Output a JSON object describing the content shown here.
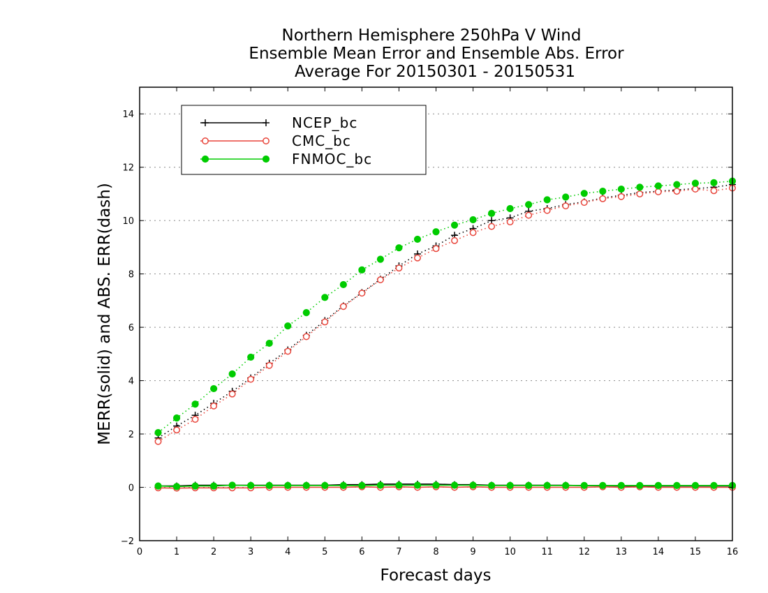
{
  "chart_data": {
    "type": "line",
    "title": [
      "Northern Hemisphere 250hPa V Wind",
      "Ensemble Mean Error and Ensemble Abs. Error",
      "Average For 20150301 - 20150531"
    ],
    "xlabel": "Forecast days",
    "ylabel": "MERR(solid) and ABS. ERR(dash)",
    "xlim": [
      0,
      16
    ],
    "ylim": [
      -2,
      15
    ],
    "xticks": [
      "0",
      "1",
      "2",
      "3",
      "4",
      "5",
      "6",
      "7",
      "8",
      "9",
      "10",
      "11",
      "12",
      "13",
      "14",
      "15",
      "16"
    ],
    "yticks": [
      "-2",
      "0",
      "2",
      "4",
      "6",
      "8",
      "10",
      "12",
      "14"
    ],
    "grid": "horizontal dotted",
    "legend_position": "top-left",
    "x": [
      0.5,
      1,
      1.5,
      2,
      2.5,
      3,
      3.5,
      4,
      4.5,
      5,
      5.5,
      6,
      6.5,
      7,
      7.5,
      8,
      8.5,
      9,
      9.5,
      10,
      10.5,
      11,
      11.5,
      12,
      12.5,
      13,
      13.5,
      14,
      14.5,
      15,
      15.5,
      16
    ],
    "series": [
      {
        "name": "NCEP_bc",
        "color": "#000000",
        "marker": "plus",
        "abs_err": [
          1.85,
          2.3,
          2.7,
          3.15,
          3.6,
          4.1,
          4.65,
          5.15,
          5.7,
          6.25,
          6.8,
          7.3,
          7.8,
          8.3,
          8.75,
          9.05,
          9.45,
          9.7,
          10.0,
          10.1,
          10.35,
          10.45,
          10.6,
          10.7,
          10.85,
          10.95,
          11.05,
          11.1,
          11.15,
          11.2,
          11.25,
          11.35
        ],
        "mean_err": [
          0.05,
          0.05,
          0.08,
          0.08,
          0.08,
          0.08,
          0.08,
          0.08,
          0.08,
          0.08,
          0.1,
          0.1,
          0.12,
          0.12,
          0.12,
          0.12,
          0.1,
          0.1,
          0.08,
          0.08,
          0.08,
          0.08,
          0.08,
          0.06,
          0.06,
          0.05,
          0.05,
          0.05,
          0.05,
          0.05,
          0.05,
          0.05
        ]
      },
      {
        "name": "CMC_bc",
        "color": "#e8443a",
        "marker": "open-circle",
        "abs_err": [
          1.72,
          2.15,
          2.55,
          3.05,
          3.5,
          4.05,
          4.57,
          5.1,
          5.65,
          6.2,
          6.78,
          7.28,
          7.78,
          8.22,
          8.6,
          8.95,
          9.25,
          9.55,
          9.78,
          9.95,
          10.2,
          10.38,
          10.55,
          10.68,
          10.82,
          10.9,
          11.0,
          11.08,
          11.1,
          11.18,
          11.12,
          11.22
        ],
        "mean_err": [
          -0.02,
          -0.03,
          -0.02,
          -0.02,
          -0.02,
          -0.02,
          0.0,
          0.0,
          0.0,
          0.0,
          0.0,
          0.02,
          0.0,
          0.02,
          0.0,
          0.02,
          0.0,
          0.02,
          0.0,
          0.0,
          0.0,
          0.0,
          0.0,
          0.0,
          0.02,
          0.0,
          0.02,
          0.0,
          0.0,
          0.0,
          0.0,
          0.0
        ]
      },
      {
        "name": "FNMOC_bc",
        "color": "#00cc00",
        "marker": "filled-circle",
        "abs_err": [
          2.05,
          2.6,
          3.12,
          3.7,
          4.25,
          4.88,
          5.4,
          6.05,
          6.55,
          7.12,
          7.6,
          8.15,
          8.55,
          8.98,
          9.3,
          9.58,
          9.83,
          10.03,
          10.27,
          10.45,
          10.6,
          10.78,
          10.88,
          11.02,
          11.1,
          11.18,
          11.25,
          11.3,
          11.35,
          11.4,
          11.42,
          11.48
        ],
        "mean_err": [
          0.05,
          0.03,
          0.05,
          0.05,
          0.08,
          0.07,
          0.07,
          0.07,
          0.07,
          0.07,
          0.07,
          0.07,
          0.08,
          0.08,
          0.08,
          0.08,
          0.08,
          0.08,
          0.07,
          0.07,
          0.07,
          0.07,
          0.07,
          0.07,
          0.07,
          0.07,
          0.07,
          0.07,
          0.07,
          0.07,
          0.07,
          0.07
        ]
      }
    ]
  }
}
